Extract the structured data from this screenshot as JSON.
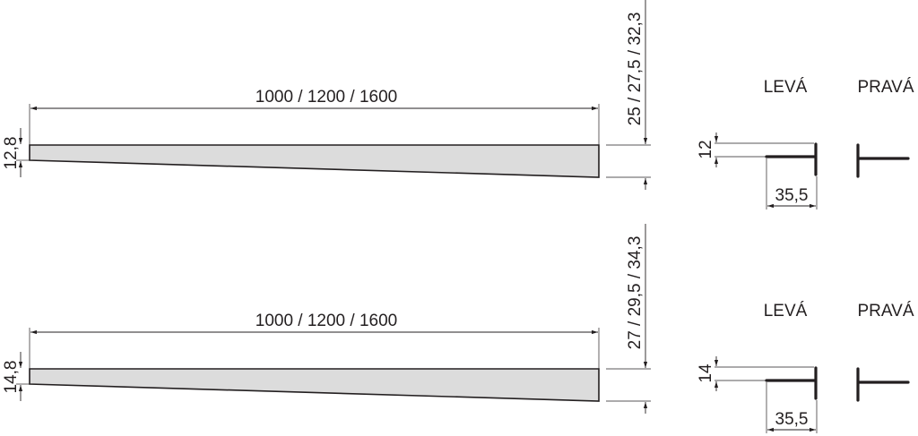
{
  "sections": [
    {
      "length_label": "1000 / 1200 / 1600",
      "thin_end_label": "12,8",
      "total_height_label": "25 / 27,5 / 32,3",
      "left_label": "LEVÁ",
      "right_label": "PRAVÁ",
      "profile_height_label": "12",
      "profile_width_label": "35,5"
    },
    {
      "length_label": "1000 / 1200 / 1600",
      "thin_end_label": "14,8",
      "total_height_label": "27 / 29,5 / 34,3",
      "left_label": "LEVÁ",
      "right_label": "PRAVÁ",
      "profile_height_label": "14",
      "profile_width_label": "35,5"
    }
  ],
  "colors": {
    "line": "#231f20",
    "fill": "#dcdcdc"
  }
}
